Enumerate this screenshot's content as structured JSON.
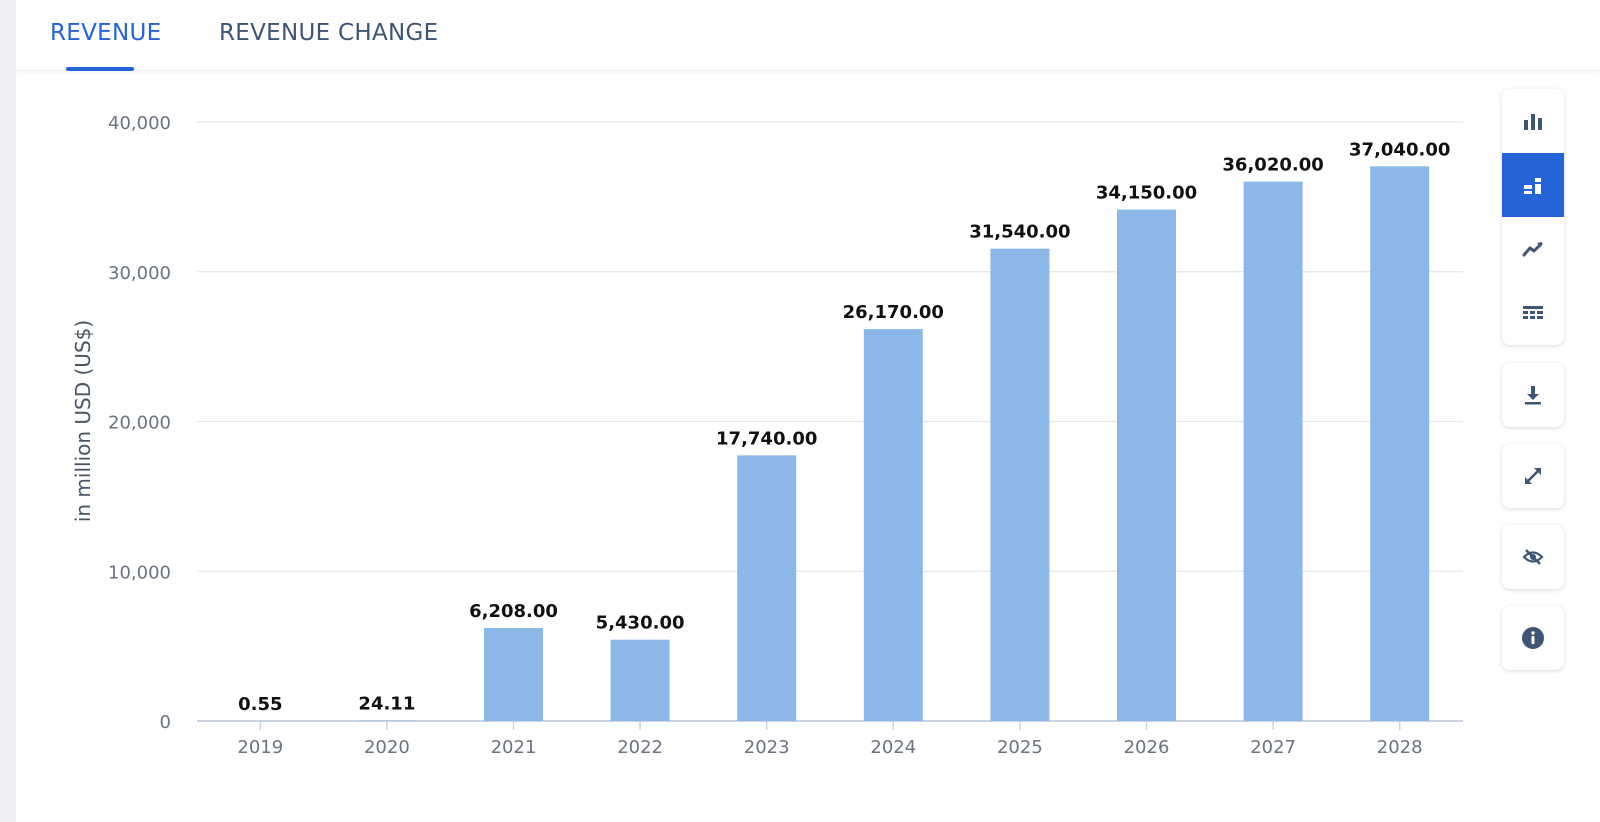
{
  "tabs": [
    {
      "label": "REVENUE",
      "active": true
    },
    {
      "label": "REVENUE CHANGE",
      "active": false
    }
  ],
  "colors": {
    "accent": "#2563d9",
    "bar": "#8bb8e8",
    "tab_text": "#3e5575",
    "grid": "#e3e6ea",
    "tool_icon": "#3e5575"
  },
  "toolbar": {
    "chart_types": [
      {
        "icon": "bar-chart-icon",
        "active": false
      },
      {
        "icon": "bar-chart-labeled-icon",
        "active": true
      },
      {
        "icon": "line-chart-icon",
        "active": false
      },
      {
        "icon": "table-icon",
        "active": false
      }
    ],
    "actions": [
      {
        "icon": "download-icon"
      },
      {
        "icon": "fullscreen-icon"
      },
      {
        "icon": "hide-icon"
      },
      {
        "icon": "info-icon"
      }
    ]
  },
  "chart_data": {
    "type": "bar",
    "categories": [
      "2019",
      "2020",
      "2021",
      "2022",
      "2023",
      "2024",
      "2025",
      "2026",
      "2027",
      "2028"
    ],
    "values": [
      0.55,
      24.11,
      6208.0,
      5430.0,
      17740.0,
      26170.0,
      31540.0,
      34150.0,
      36020.0,
      37040.0
    ],
    "value_labels": [
      "0.55",
      "24.11",
      "6,208.00",
      "5,430.00",
      "17,740.00",
      "26,170.00",
      "31,540.00",
      "34,150.00",
      "36,020.00",
      "37,040.00"
    ],
    "ylabel": "in million USD (US$)",
    "ylim": [
      0,
      40000
    ],
    "yticks": [
      0,
      10000,
      20000,
      30000,
      40000
    ],
    "ytick_labels": [
      "0",
      "10,000",
      "20,000",
      "30,000",
      "40,000"
    ],
    "grid": true
  }
}
